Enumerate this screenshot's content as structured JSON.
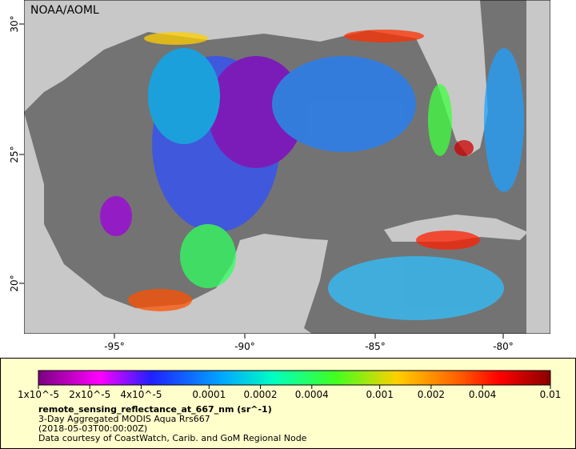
{
  "map": {
    "title": "NOAA/AOML",
    "lat_ticks": [
      "30°",
      "25°",
      "20°"
    ],
    "lon_ticks": [
      "-95°",
      "-90°",
      "-85°",
      "-80°"
    ]
  },
  "colorbar": {
    "range": [
      1e-05,
      0.01
    ],
    "log_scale": true,
    "ticks": [
      {
        "value": 1e-05,
        "label": "1x10^-5"
      },
      {
        "value": 2e-05,
        "label": "2x10^-5"
      },
      {
        "value": 4e-05,
        "label": "4x10^-5"
      },
      0.0001,
      0.0002,
      0.0004,
      0.001,
      0.002,
      0.004,
      0.01
    ]
  },
  "caption": {
    "variable": "remote_sensing_reflectance_at_667_nm (sr^-1)",
    "lines": [
      "3-Day Aggregated MODIS Aqua Rrs667",
      "(2018-05-03T00:00:00Z)",
      "Data courtesy of CoastWatch, Carib. and GoM Regional Node"
    ]
  }
}
